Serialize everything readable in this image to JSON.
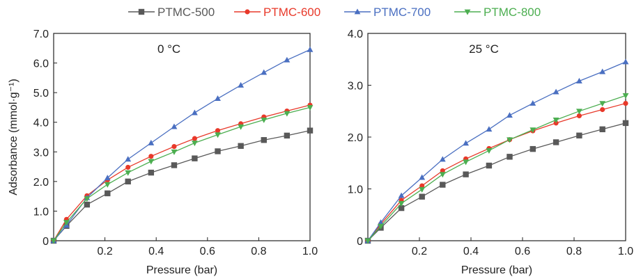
{
  "legend": {
    "placement": "top-center",
    "entries": [
      {
        "name": "PTMC-500",
        "color": "#595959",
        "marker": "square"
      },
      {
        "name": "PTMC-600",
        "color": "#e8392a",
        "marker": "circle"
      },
      {
        "name": "PTMC-700",
        "color": "#4a6fc1",
        "marker": "triangle-up"
      },
      {
        "name": "PTMC-800",
        "color": "#4cae50",
        "marker": "triangle-down"
      }
    ]
  },
  "chart_data": [
    {
      "type": "line",
      "annotation": "0 °C",
      "xlabel": "Pressure (bar)",
      "ylabel": "Adsorbance (mmol·g⁻¹)",
      "xlim": [
        0,
        1.0
      ],
      "ylim": [
        0,
        7.0
      ],
      "xticks": [
        0.2,
        0.4,
        0.6,
        0.8,
        1.0
      ],
      "xtick_labels": [
        "0.2",
        "0.4",
        "0.6",
        "0.8",
        "1.0"
      ],
      "yticks": [
        0,
        1,
        2,
        3,
        4,
        5,
        6,
        7
      ],
      "ytick_labels": [
        "0",
        "1.0",
        "2.0",
        "3.0",
        "4.0",
        "5.0",
        "6.0",
        "7.0"
      ],
      "grid": false,
      "series": [
        {
          "name": "PTMC-500",
          "x": [
            0,
            0.05,
            0.13,
            0.21,
            0.29,
            0.38,
            0.47,
            0.55,
            0.64,
            0.73,
            0.82,
            0.91,
            1.0
          ],
          "y": [
            0,
            0.5,
            1.22,
            1.6,
            2.0,
            2.3,
            2.55,
            2.78,
            3.02,
            3.2,
            3.4,
            3.55,
            3.72
          ]
        },
        {
          "name": "PTMC-600",
          "x": [
            0,
            0.05,
            0.13,
            0.21,
            0.29,
            0.38,
            0.47,
            0.55,
            0.64,
            0.73,
            0.82,
            0.91,
            1.0
          ],
          "y": [
            0,
            0.72,
            1.52,
            2.05,
            2.48,
            2.85,
            3.18,
            3.45,
            3.72,
            3.95,
            4.18,
            4.38,
            4.58
          ]
        },
        {
          "name": "PTMC-700",
          "x": [
            0,
            0.05,
            0.13,
            0.21,
            0.29,
            0.38,
            0.47,
            0.55,
            0.64,
            0.73,
            0.82,
            0.91,
            1.0
          ],
          "y": [
            0,
            0.52,
            1.45,
            2.12,
            2.75,
            3.3,
            3.85,
            4.32,
            4.8,
            5.25,
            5.68,
            6.1,
            6.45
          ]
        },
        {
          "name": "PTMC-800",
          "x": [
            0,
            0.05,
            0.13,
            0.21,
            0.29,
            0.38,
            0.47,
            0.55,
            0.64,
            0.73,
            0.82,
            0.91,
            1.0
          ],
          "y": [
            0,
            0.62,
            1.42,
            1.9,
            2.3,
            2.68,
            3.0,
            3.3,
            3.58,
            3.85,
            4.08,
            4.3,
            4.5
          ]
        }
      ]
    },
    {
      "type": "line",
      "annotation": "25 °C",
      "xlabel": "Pressure (bar)",
      "ylabel": "",
      "xlim": [
        0,
        1.0
      ],
      "ylim": [
        0,
        4.0
      ],
      "xticks": [
        0.2,
        0.4,
        0.6,
        0.8,
        1.0
      ],
      "xtick_labels": [
        "0.2",
        "0.4",
        "0.6",
        "0.8",
        "1.0"
      ],
      "yticks": [
        0,
        1,
        2,
        3,
        4
      ],
      "ytick_labels": [
        "0",
        "1.0",
        "2.0",
        "3.0",
        "4.0"
      ],
      "grid": false,
      "series": [
        {
          "name": "PTMC-500",
          "x": [
            0,
            0.05,
            0.13,
            0.21,
            0.29,
            0.38,
            0.47,
            0.55,
            0.64,
            0.73,
            0.82,
            0.91,
            1.0
          ],
          "y": [
            0,
            0.25,
            0.63,
            0.85,
            1.08,
            1.28,
            1.45,
            1.62,
            1.77,
            1.9,
            2.03,
            2.15,
            2.27
          ]
        },
        {
          "name": "PTMC-600",
          "x": [
            0,
            0.05,
            0.13,
            0.21,
            0.29,
            0.38,
            0.47,
            0.55,
            0.64,
            0.73,
            0.82,
            0.91,
            1.0
          ],
          "y": [
            0,
            0.32,
            0.78,
            1.06,
            1.35,
            1.58,
            1.78,
            1.95,
            2.12,
            2.27,
            2.41,
            2.53,
            2.65
          ]
        },
        {
          "name": "PTMC-700",
          "x": [
            0,
            0.05,
            0.13,
            0.21,
            0.29,
            0.38,
            0.47,
            0.55,
            0.64,
            0.73,
            0.82,
            0.91,
            1.0
          ],
          "y": [
            0,
            0.35,
            0.87,
            1.22,
            1.57,
            1.88,
            2.15,
            2.42,
            2.65,
            2.87,
            3.08,
            3.26,
            3.45
          ]
        },
        {
          "name": "PTMC-800",
          "x": [
            0,
            0.05,
            0.13,
            0.21,
            0.29,
            0.38,
            0.47,
            0.55,
            0.64,
            0.73,
            0.82,
            0.91,
            1.0
          ],
          "y": [
            0,
            0.28,
            0.72,
            0.99,
            1.28,
            1.52,
            1.74,
            1.95,
            2.14,
            2.33,
            2.5,
            2.65,
            2.8
          ]
        }
      ]
    }
  ]
}
